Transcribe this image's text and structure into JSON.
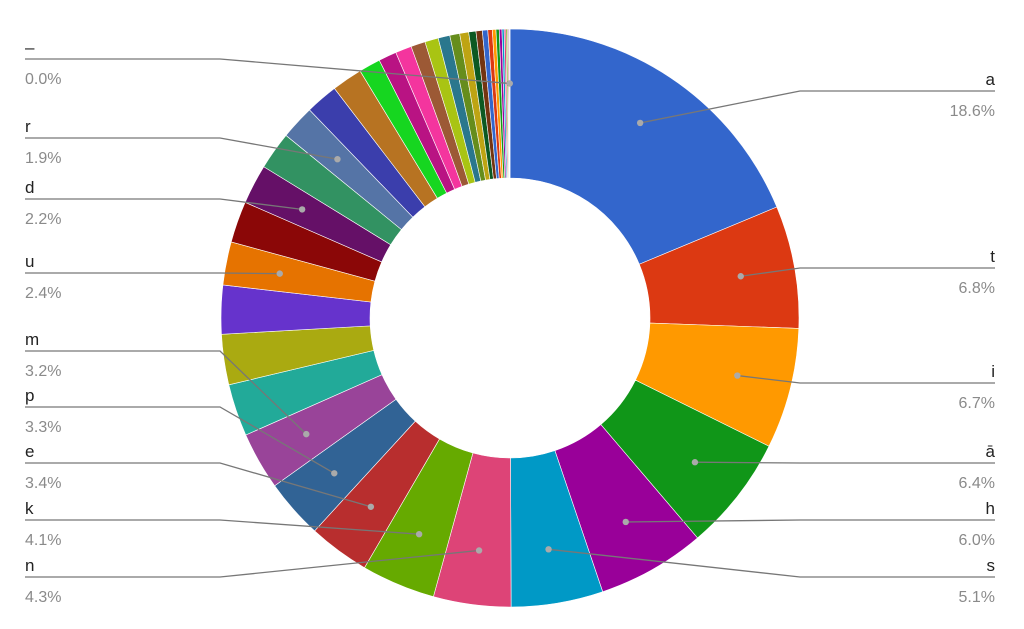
{
  "chart_data": {
    "type": "pie",
    "title": "",
    "donut": true,
    "slices": [
      {
        "label": "a",
        "value": 18.6,
        "pct_text": "18.6%",
        "color": "#3366cc",
        "labeled": true
      },
      {
        "label": "t",
        "value": 6.8,
        "pct_text": "6.8%",
        "color": "#dc3912",
        "labeled": true
      },
      {
        "label": "i",
        "value": 6.7,
        "pct_text": "6.7%",
        "color": "#ff9900",
        "labeled": true
      },
      {
        "label": "ā",
        "value": 6.4,
        "pct_text": "6.4%",
        "color": "#109618",
        "labeled": true
      },
      {
        "label": "h",
        "value": 6.0,
        "pct_text": "6.0%",
        "color": "#990099",
        "labeled": true
      },
      {
        "label": "s",
        "value": 5.1,
        "pct_text": "5.1%",
        "color": "#0099c6",
        "labeled": true
      },
      {
        "label": "n",
        "value": 4.3,
        "pct_text": "4.3%",
        "color": "#dd4477",
        "labeled": true
      },
      {
        "label": "k",
        "value": 4.1,
        "pct_text": "4.1%",
        "color": "#66aa00",
        "labeled": true
      },
      {
        "label": "e",
        "value": 3.4,
        "pct_text": "3.4%",
        "color": "#b82e2e",
        "labeled": true
      },
      {
        "label": "p",
        "value": 3.3,
        "pct_text": "3.3%",
        "color": "#316395",
        "labeled": true
      },
      {
        "label": "m",
        "value": 3.2,
        "pct_text": "3.2%",
        "color": "#994499",
        "labeled": true
      },
      {
        "label": "",
        "value": 2.9,
        "color": "#22aa99",
        "labeled": false
      },
      {
        "label": "",
        "value": 2.8,
        "color": "#aaaa11",
        "labeled": false
      },
      {
        "label": "",
        "value": 2.7,
        "color": "#6633cc",
        "labeled": false
      },
      {
        "label": "u",
        "value": 2.4,
        "pct_text": "2.4%",
        "color": "#e67300",
        "labeled": true
      },
      {
        "label": "",
        "value": 2.3,
        "color": "#8b0707",
        "labeled": false
      },
      {
        "label": "d",
        "value": 2.2,
        "pct_text": "2.2%",
        "color": "#651067",
        "labeled": true
      },
      {
        "label": "",
        "value": 2.1,
        "color": "#329262",
        "labeled": false
      },
      {
        "label": "r",
        "value": 1.9,
        "pct_text": "1.9%",
        "color": "#5574a6",
        "labeled": true
      },
      {
        "label": "",
        "value": 1.8,
        "color": "#3b3eac",
        "labeled": false
      },
      {
        "label": "",
        "value": 1.7,
        "color": "#b77322",
        "labeled": false
      },
      {
        "label": "",
        "value": 1.2,
        "color": "#16d620",
        "labeled": false
      },
      {
        "label": "",
        "value": 1.0,
        "color": "#b91383",
        "labeled": false
      },
      {
        "label": "",
        "value": 0.9,
        "color": "#f4359e",
        "labeled": false
      },
      {
        "label": "",
        "value": 0.8,
        "color": "#9c5935",
        "labeled": false
      },
      {
        "label": "",
        "value": 0.75,
        "color": "#a9c413",
        "labeled": false
      },
      {
        "label": "",
        "value": 0.65,
        "color": "#2a778d",
        "labeled": false
      },
      {
        "label": "",
        "value": 0.55,
        "color": "#668d1c",
        "labeled": false
      },
      {
        "label": "",
        "value": 0.5,
        "color": "#bea413",
        "labeled": false
      },
      {
        "label": "",
        "value": 0.4,
        "color": "#0c5922",
        "labeled": false
      },
      {
        "label": "",
        "value": 0.35,
        "color": "#743411",
        "labeled": false
      },
      {
        "label": "",
        "value": 0.3,
        "color": "#3366cc",
        "labeled": false
      },
      {
        "label": "",
        "value": 0.25,
        "color": "#dc3912",
        "labeled": false
      },
      {
        "label": "",
        "value": 0.2,
        "color": "#ff9900",
        "labeled": false
      },
      {
        "label": "",
        "value": 0.18,
        "color": "#109618",
        "labeled": false
      },
      {
        "label": "",
        "value": 0.15,
        "color": "#990099",
        "labeled": false
      },
      {
        "label": "",
        "value": 0.12,
        "color": "#0099c6",
        "labeled": false
      },
      {
        "label": "",
        "value": 0.1,
        "color": "#dd4477",
        "labeled": false
      },
      {
        "label": "",
        "value": 0.08,
        "color": "#66aa00",
        "labeled": false
      },
      {
        "label": "",
        "value": 0.06,
        "color": "#b82e2e",
        "labeled": false
      },
      {
        "label": "",
        "value": 0.05,
        "color": "#316395",
        "labeled": false
      },
      {
        "label": "–",
        "value": 0.03,
        "pct_text": "0.0%",
        "color": "#994499",
        "labeled": true
      }
    ]
  }
}
